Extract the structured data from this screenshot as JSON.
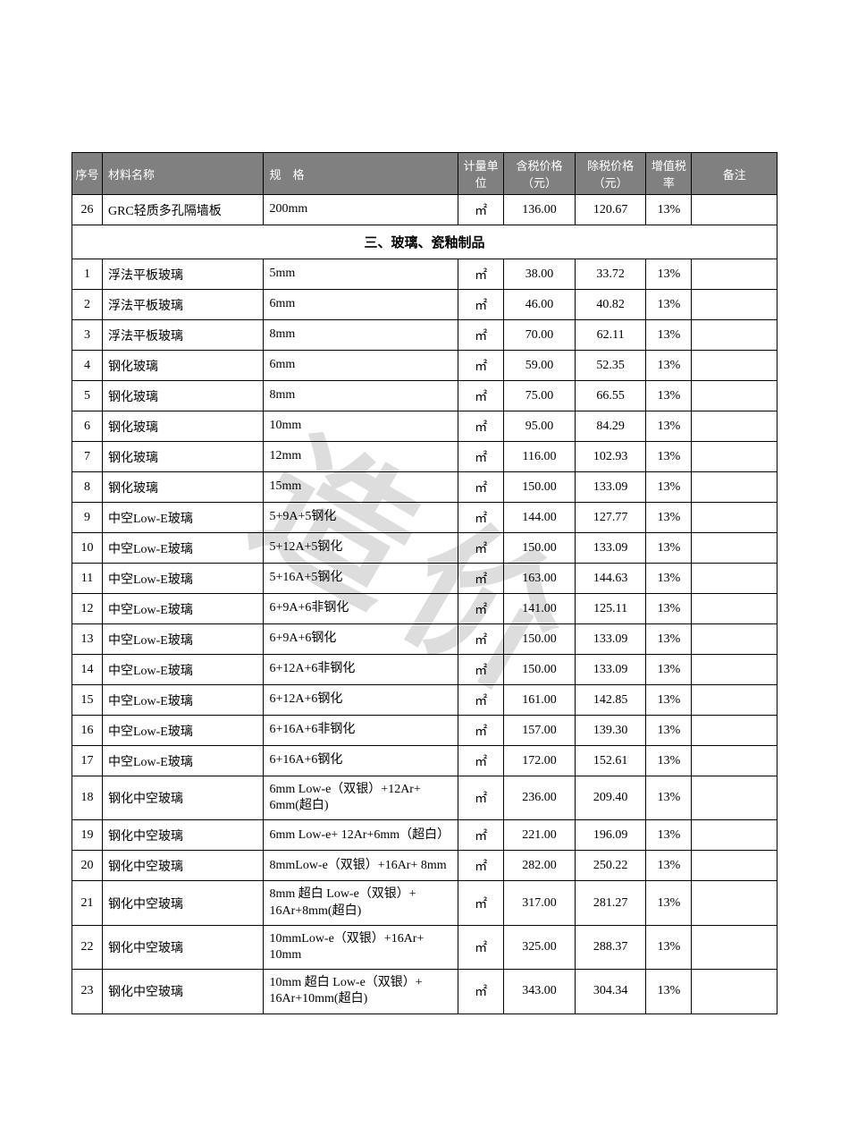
{
  "watermark": "造价",
  "headers": {
    "seq": "序号",
    "name": "材料名称",
    "spec": "规　格",
    "unit": "计量单位",
    "price_tax": "含税价格（元）",
    "price_notax": "除税价格（元）",
    "tax_rate": "增值税率",
    "remark": "备注"
  },
  "pre_rows": [
    {
      "seq": "26",
      "name": "GRC轻质多孔隔墙板",
      "spec": "200mm",
      "unit": "㎡",
      "p1": "136.00",
      "p2": "120.67",
      "tax": "13%",
      "remark": ""
    }
  ],
  "section_title": "三、玻璃、瓷釉制品",
  "rows": [
    {
      "seq": "1",
      "name": "浮法平板玻璃",
      "spec": "5mm",
      "unit": "㎡",
      "p1": "38.00",
      "p2": "33.72",
      "tax": "13%",
      "remark": ""
    },
    {
      "seq": "2",
      "name": "浮法平板玻璃",
      "spec": "6mm",
      "unit": "㎡",
      "p1": "46.00",
      "p2": "40.82",
      "tax": "13%",
      "remark": ""
    },
    {
      "seq": "3",
      "name": "浮法平板玻璃",
      "spec": "8mm",
      "unit": "㎡",
      "p1": "70.00",
      "p2": "62.11",
      "tax": "13%",
      "remark": ""
    },
    {
      "seq": "4",
      "name": "钢化玻璃",
      "spec": "6mm",
      "unit": "㎡",
      "p1": "59.00",
      "p2": "52.35",
      "tax": "13%",
      "remark": ""
    },
    {
      "seq": "5",
      "name": "钢化玻璃",
      "spec": "8mm",
      "unit": "㎡",
      "p1": "75.00",
      "p2": "66.55",
      "tax": "13%",
      "remark": ""
    },
    {
      "seq": "6",
      "name": "钢化玻璃",
      "spec": "10mm",
      "unit": "㎡",
      "p1": "95.00",
      "p2": "84.29",
      "tax": "13%",
      "remark": ""
    },
    {
      "seq": "7",
      "name": "钢化玻璃",
      "spec": "12mm",
      "unit": "㎡",
      "p1": "116.00",
      "p2": "102.93",
      "tax": "13%",
      "remark": ""
    },
    {
      "seq": "8",
      "name": "钢化玻璃",
      "spec": "15mm",
      "unit": "㎡",
      "p1": "150.00",
      "p2": "133.09",
      "tax": "13%",
      "remark": ""
    },
    {
      "seq": "9",
      "name": "中空Low-E玻璃",
      "spec": "5+9A+5钢化",
      "unit": "㎡",
      "p1": "144.00",
      "p2": "127.77",
      "tax": "13%",
      "remark": ""
    },
    {
      "seq": "10",
      "name": "中空Low-E玻璃",
      "spec": "5+12A+5钢化",
      "unit": "㎡",
      "p1": "150.00",
      "p2": "133.09",
      "tax": "13%",
      "remark": ""
    },
    {
      "seq": "11",
      "name": "中空Low-E玻璃",
      "spec": "5+16A+5钢化",
      "unit": "㎡",
      "p1": "163.00",
      "p2": "144.63",
      "tax": "13%",
      "remark": ""
    },
    {
      "seq": "12",
      "name": "中空Low-E玻璃",
      "spec": "6+9A+6非钢化",
      "unit": "㎡",
      "p1": "141.00",
      "p2": "125.11",
      "tax": "13%",
      "remark": ""
    },
    {
      "seq": "13",
      "name": "中空Low-E玻璃",
      "spec": "6+9A+6钢化",
      "unit": "㎡",
      "p1": "150.00",
      "p2": "133.09",
      "tax": "13%",
      "remark": ""
    },
    {
      "seq": "14",
      "name": "中空Low-E玻璃",
      "spec": "6+12A+6非钢化",
      "unit": "㎡",
      "p1": "150.00",
      "p2": "133.09",
      "tax": "13%",
      "remark": ""
    },
    {
      "seq": "15",
      "name": "中空Low-E玻璃",
      "spec": "6+12A+6钢化",
      "unit": "㎡",
      "p1": "161.00",
      "p2": "142.85",
      "tax": "13%",
      "remark": ""
    },
    {
      "seq": "16",
      "name": "中空Low-E玻璃",
      "spec": "6+16A+6非钢化",
      "unit": "㎡",
      "p1": "157.00",
      "p2": "139.30",
      "tax": "13%",
      "remark": ""
    },
    {
      "seq": "17",
      "name": "中空Low-E玻璃",
      "spec": "6+16A+6钢化",
      "unit": "㎡",
      "p1": "172.00",
      "p2": "152.61",
      "tax": "13%",
      "remark": ""
    },
    {
      "seq": "18",
      "name": "钢化中空玻璃",
      "spec": "6mm Low-e（双银）+12Ar+ 6mm(超白)",
      "unit": "㎡",
      "p1": "236.00",
      "p2": "209.40",
      "tax": "13%",
      "remark": ""
    },
    {
      "seq": "19",
      "name": "钢化中空玻璃",
      "spec": "6mm Low-e+ 12Ar+6mm（超白）",
      "unit": "㎡",
      "p1": "221.00",
      "p2": "196.09",
      "tax": "13%",
      "remark": ""
    },
    {
      "seq": "20",
      "name": "钢化中空玻璃",
      "spec": "8mmLow-e（双银）+16Ar+ 8mm",
      "unit": "㎡",
      "p1": "282.00",
      "p2": "250.22",
      "tax": "13%",
      "remark": ""
    },
    {
      "seq": "21",
      "name": "钢化中空玻璃",
      "spec": "8mm 超白 Low-e（双银）+ 16Ar+8mm(超白)",
      "unit": "㎡",
      "p1": "317.00",
      "p2": "281.27",
      "tax": "13%",
      "remark": ""
    },
    {
      "seq": "22",
      "name": "钢化中空玻璃",
      "spec": "10mmLow-e（双银）+16Ar+ 10mm",
      "unit": "㎡",
      "p1": "325.00",
      "p2": "288.37",
      "tax": "13%",
      "remark": ""
    },
    {
      "seq": "23",
      "name": "钢化中空玻璃",
      "spec": "10mm 超白 Low-e（双银）+ 16Ar+10mm(超白)",
      "unit": "㎡",
      "p1": "343.00",
      "p2": "304.34",
      "tax": "13%",
      "remark": ""
    }
  ]
}
